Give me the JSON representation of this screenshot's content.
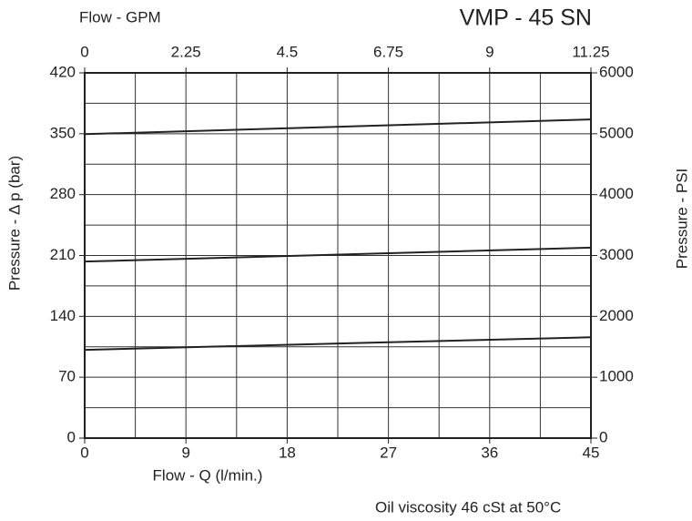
{
  "chart_data": {
    "type": "line",
    "title": "VMP - 45 SN",
    "x_label": "Flow - Q (l/min.)",
    "x2_label": "Flow - GPM",
    "y_label": "Pressure - Δ p (bar)",
    "y2_label": "Pressure - PSI",
    "annotation": "Oil viscosity 46 cSt at 50°C",
    "x": [
      0,
      45
    ],
    "xlim": [
      0,
      45
    ],
    "xticks": [
      0,
      9,
      18,
      27,
      36,
      45
    ],
    "x2lim": [
      0,
      11.25
    ],
    "x2ticks": [
      0,
      2.25,
      4.5,
      6.75,
      9,
      11.25
    ],
    "ylim": [
      0,
      420
    ],
    "yticks": [
      0,
      70,
      140,
      210,
      280,
      350,
      420
    ],
    "y2lim": [
      0,
      6000
    ],
    "y2ticks": [
      0,
      1000,
      2000,
      3000,
      4000,
      5000,
      6000
    ],
    "grid": true,
    "series": [
      {
        "color": "#222222",
        "values": [
          349.5,
          366.5
        ]
      },
      {
        "color": "#222222",
        "values": [
          203,
          219
        ]
      },
      {
        "color": "#222222",
        "values": [
          101.5,
          116
        ]
      }
    ]
  }
}
